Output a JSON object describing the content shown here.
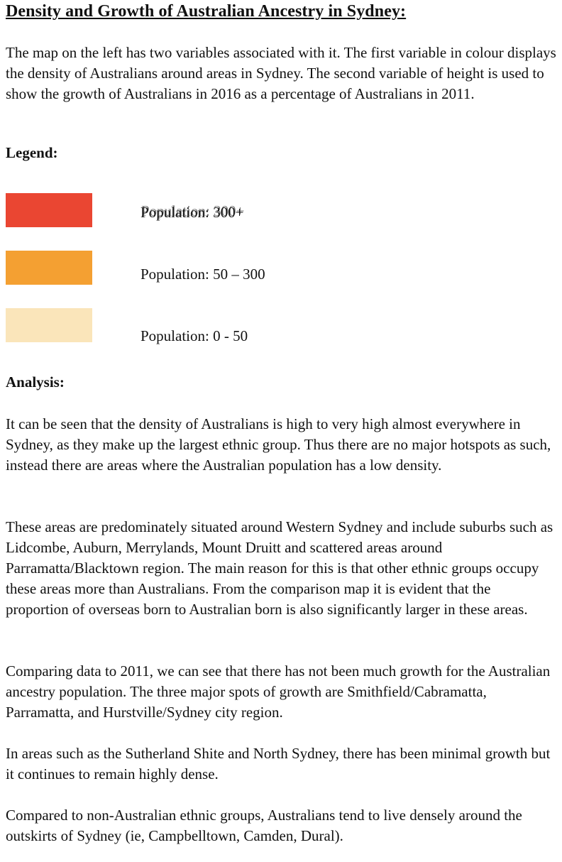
{
  "title": "Density and Growth of Australian Ancestry in Sydney:",
  "intro": "The map on the left has two variables associated with it. The first variable in colour displays the density of Australians around areas in Sydney. The second variable of height is used to show the growth of Australians in 2016 as a percentage of Australians in 2011.",
  "legend": {
    "heading": "Legend:",
    "items": [
      {
        "label": "Population: 300+",
        "color": "#ea4632"
      },
      {
        "label": "Population: 50 – 300",
        "color": "#f4a032"
      },
      {
        "label": "Population: 0 - 50",
        "color": "#fae5ba"
      }
    ]
  },
  "analysis": {
    "heading": "Analysis:",
    "paragraphs": [
      "It can be seen that the density of Australians is high to very high almost everywhere in Sydney, as they make up the largest ethnic group. Thus there are no major hotspots as such, instead there are areas where the Australian population has a low density.",
      "These areas are predominately situated around Western Sydney and include suburbs such as Lidcombe, Auburn, Merrylands, Mount Druitt and scattered areas around Parramatta/Blacktown region. The main reason for this is that other ethnic groups occupy these areas more than Australians. From the comparison map it is evident that the proportion of overseas born to Australian born is also significantly larger in these areas.",
      "Comparing data to 2011, we can see that there has not been much growth for the Australian ancestry population. The three major spots of growth are Smithfield/Cabramatta, Parramatta, and Hurstville/Sydney city region.",
      "In areas such as the Sutherland Shite and North Sydney, there has been minimal growth but it continues to remain highly dense.",
      "Compared to non-Australian ethnic groups, Australians tend to live densely around the outskirts of Sydney (ie, Campbelltown, Camden, Dural)."
    ]
  }
}
